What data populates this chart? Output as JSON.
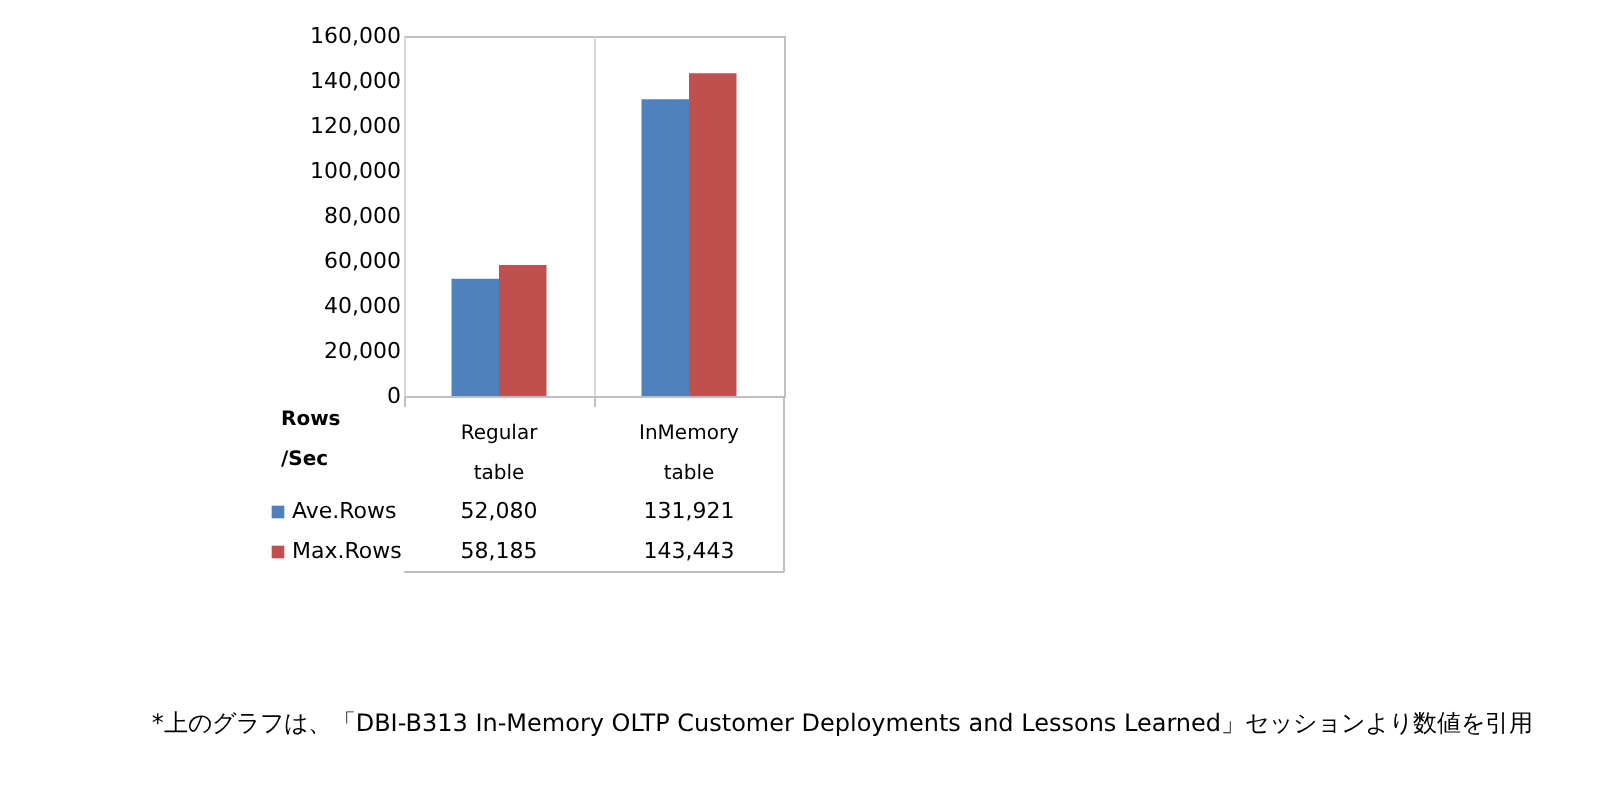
{
  "chart_data": {
    "type": "bar",
    "ylabel": "Rows /Sec",
    "categories": [
      "Regular table",
      "InMemory table"
    ],
    "series": [
      {
        "name": "Ave.Rows",
        "color": "#4f81bd",
        "values": [
          52080,
          131921
        ],
        "value_labels": [
          "52,080",
          "131,921"
        ]
      },
      {
        "name": "Max.Rows",
        "color": "#c0504d",
        "values": [
          58185,
          143443
        ],
        "value_labels": [
          "58,185",
          "143,443"
        ]
      }
    ],
    "ylim": [
      0,
      160000
    ],
    "yticks": [
      0,
      {
        "value": 20000,
        "label": "20,000"
      },
      {
        "value": 40000,
        "label": "40,000"
      },
      {
        "value": 60000,
        "label": "60,000"
      },
      {
        "value": 80000,
        "label": "80,000"
      },
      {
        "value": 100000,
        "label": "100,000"
      },
      {
        "value": 120000,
        "label": "120,000"
      },
      {
        "value": 140000,
        "label": "140,000"
      },
      {
        "value": 160000,
        "label": "160,000"
      }
    ],
    "grid": false,
    "legend": "bottom left",
    "annotations": [
      "*上のグラフは、「DBI-B313 In-Memory OLTP Customer Deployments and Lessons Learned」セッションより数値を引用"
    ]
  }
}
